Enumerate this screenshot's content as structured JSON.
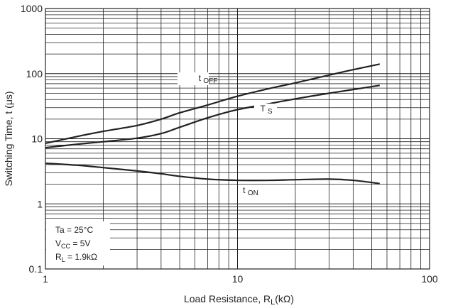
{
  "chart_data": {
    "type": "line",
    "xlabel": "Load Resistance, R",
    "xlabel_sub": "L",
    "xlabel_unit": "(kΩ)",
    "ylabel": "Switching Time, t (μs)",
    "x_scale": "log",
    "y_scale": "log",
    "xlim": [
      1,
      100
    ],
    "ylim": [
      0.1,
      1000
    ],
    "x_ticks": [
      {
        "value": 1,
        "label": "1"
      },
      {
        "value": 10,
        "label": "10"
      },
      {
        "value": 100,
        "label": "100"
      }
    ],
    "y_ticks": [
      {
        "value": 0.1,
        "label": "0.1"
      },
      {
        "value": 1,
        "label": "1"
      },
      {
        "value": 10,
        "label": "10"
      },
      {
        "value": 100,
        "label": "100"
      },
      {
        "value": 1000,
        "label": "1000"
      }
    ],
    "grid": true,
    "conditions": [
      {
        "main": "Ta = 25°C",
        "sub": "",
        "tail": ""
      },
      {
        "main": "V",
        "sub": "CC",
        "tail": " = 5V"
      },
      {
        "main": "R",
        "sub": "L",
        "tail": " = 1.9kΩ"
      }
    ],
    "series": [
      {
        "name": "t",
        "name_sub": "OFF",
        "x": [
          1,
          1.5,
          2,
          3,
          4,
          5,
          7,
          10,
          15,
          20,
          30,
          40,
          55
        ],
        "y": [
          8.5,
          11,
          13,
          16,
          20,
          25,
          33,
          45,
          60,
          72,
          95,
          115,
          140
        ]
      },
      {
        "name": "T",
        "name_sub": "S",
        "x": [
          1,
          1.5,
          2,
          3,
          4,
          5,
          7,
          10,
          15,
          20,
          30,
          40,
          55
        ],
        "y": [
          7.3,
          8.3,
          9,
          10.2,
          12,
          15,
          21,
          28,
          35,
          41,
          50,
          57,
          66
        ]
      },
      {
        "name": "t",
        "name_sub": "ON",
        "x": [
          1,
          1.5,
          2,
          3,
          4,
          5,
          7,
          10,
          15,
          20,
          30,
          40,
          55
        ],
        "y": [
          4.2,
          3.9,
          3.6,
          3.2,
          2.9,
          2.65,
          2.4,
          2.3,
          2.3,
          2.35,
          2.4,
          2.3,
          2.05
        ]
      }
    ]
  }
}
